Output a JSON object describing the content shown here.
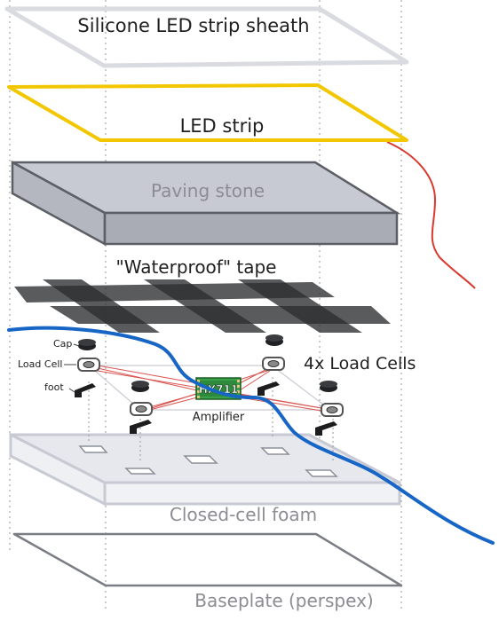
{
  "layers": {
    "sheath": "Silicone LED strip sheath",
    "led_strip": "LED strip",
    "paving_stone": "Paving stone",
    "tape": "\"Waterproof\" tape",
    "foam": "Closed-cell foam",
    "baseplate": "Baseplate (perspex)"
  },
  "callouts": {
    "cap": "Cap",
    "load_cell": "Load Cell",
    "foot": "foot",
    "load_cells_count": "4x Load Cells",
    "amplifier": "Amplifier",
    "chip": "HX711"
  },
  "colors": {
    "led_strip": "#f2c700",
    "power_wire": "#d9382e",
    "data_cable": "#1766c6",
    "stone_top": "#c8cad3",
    "stone_side": "#a9abb5",
    "tape": "#2b2d30",
    "foam": "#e6e8ee",
    "pcb": "#3aa14a",
    "cell_wire": "#d9534f"
  }
}
